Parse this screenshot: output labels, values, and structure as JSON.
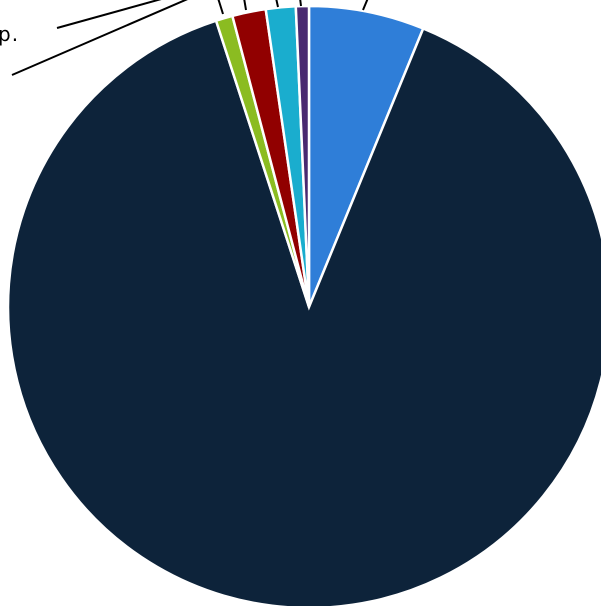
{
  "chart_data": {
    "type": "pie",
    "slices": [
      {
        "value": 6.2,
        "color": "#2f7ed8"
      },
      {
        "value": 88.9,
        "color": "#0d233a"
      },
      {
        "value": 0.9,
        "color": "#8bbc21"
      },
      {
        "value": 1.8,
        "color": "#910000"
      },
      {
        "value": 1.6,
        "color": "#1aadce"
      },
      {
        "value": 0.7,
        "color": "#492970"
      }
    ],
    "labels": [
      {
        "text": "p."
      }
    ]
  }
}
